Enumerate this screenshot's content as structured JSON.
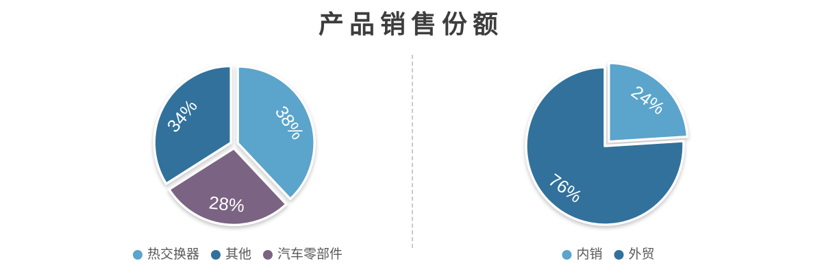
{
  "title": "产品销售份额",
  "colors": {
    "light_blue": "#5BA4CB",
    "dark_blue": "#31719C",
    "purple": "#7B6383",
    "title_text": "#3D3D3D",
    "legend_text": "#595959",
    "divider": "#C9C9C9",
    "slice_label_text": "#FFFFFF"
  },
  "chart_data": [
    {
      "type": "pie",
      "name": "product-share-pie",
      "style": "exploded, white slice borders, labels inside, clockwise from top",
      "slices": [
        {
          "label": "热交换器",
          "value": 38,
          "pct_label": "38%",
          "color": "#5BA4CB"
        },
        {
          "label": "汽车零部件",
          "value": 28,
          "pct_label": "28%",
          "color": "#7B6383"
        },
        {
          "label": "其他",
          "value": 34,
          "pct_label": "34%",
          "color": "#31719C"
        }
      ],
      "legend": [
        {
          "label": "热交换器",
          "color": "#5BA4CB"
        },
        {
          "label": "其他",
          "color": "#31719C"
        },
        {
          "label": "汽车零部件",
          "color": "#7B6383"
        }
      ],
      "legend_position": "bottom"
    },
    {
      "type": "pie",
      "name": "domestic-vs-export-pie",
      "style": "first slice exploded, white slice borders, labels inside, clockwise from top",
      "slices": [
        {
          "label": "内销",
          "value": 24,
          "pct_label": "24%",
          "color": "#5BA4CB"
        },
        {
          "label": "外贸",
          "value": 76,
          "pct_label": "76%",
          "color": "#31719C"
        }
      ],
      "legend": [
        {
          "label": "内销",
          "color": "#5BA4CB"
        },
        {
          "label": "外贸",
          "color": "#31719C"
        }
      ],
      "legend_position": "bottom"
    }
  ]
}
